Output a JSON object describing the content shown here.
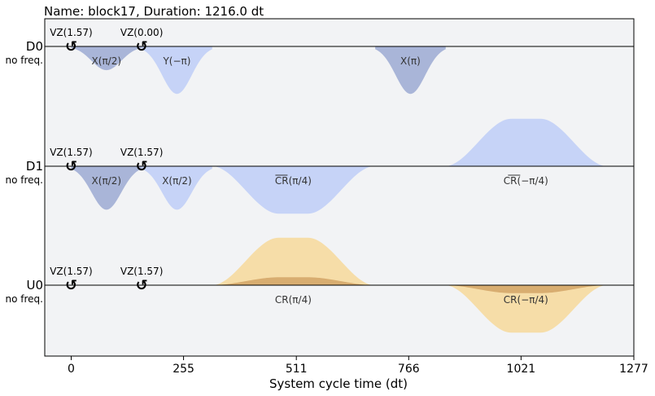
{
  "chart_data": {
    "type": "pulse-schedule",
    "title": "Name: block17, Duration: 1216.0 dt",
    "xlabel": "System cycle time (dt)",
    "xlim": [
      -60,
      1277
    ],
    "xticks": [
      0,
      255,
      511,
      766,
      1021,
      1277
    ],
    "colors": {
      "background": "#f2f3f5",
      "gaussian_dark": "#a9b5d8",
      "gaussian_light": "#c6d3f7",
      "cr_light": "#f6dda8",
      "cr_dark": "#d8ad70"
    },
    "channels": [
      {
        "name": "D0",
        "freq_label": "no freq.",
        "vz": [
          {
            "t": 0,
            "label": "VZ(1.57)"
          },
          {
            "t": 160,
            "label": "VZ(0.00)"
          }
        ],
        "pulses": [
          {
            "t0": 0,
            "t1": 160,
            "amp": -0.3,
            "shape": "gauss",
            "color": "gaussian_dark",
            "label": "X(π/2)"
          },
          {
            "t0": 160,
            "t1": 320,
            "amp": -0.6,
            "shape": "gauss",
            "color": "gaussian_light",
            "label": "Y(−π)"
          },
          {
            "t0": 690,
            "t1": 850,
            "amp": -0.6,
            "shape": "gauss",
            "color": "gaussian_dark",
            "label": "X(π)"
          }
        ]
      },
      {
        "name": "D1",
        "freq_label": "no freq.",
        "vz": [
          {
            "t": 0,
            "label": "VZ(1.57)"
          },
          {
            "t": 160,
            "label": "VZ(1.57)"
          }
        ],
        "pulses": [
          {
            "t0": 0,
            "t1": 160,
            "amp": -0.55,
            "shape": "gauss",
            "color": "gaussian_dark",
            "label": "X(π/2)"
          },
          {
            "t0": 160,
            "t1": 320,
            "amp": -0.55,
            "shape": "gauss",
            "color": "gaussian_light",
            "label": "X(π/2)"
          },
          {
            "t0": 320,
            "t1": 688,
            "amp": -0.6,
            "rise": 150,
            "shape": "flat",
            "color": "gaussian_light",
            "label": "CR(π/4)",
            "overline": true
          },
          {
            "t0": 848,
            "t1": 1216,
            "amp": 0.6,
            "rise": 150,
            "label_below": true,
            "shape": "flat",
            "color": "gaussian_light",
            "label": "CR(−π/4)",
            "overline": true
          }
        ]
      },
      {
        "name": "U0",
        "freq_label": "no freq.",
        "vz": [
          {
            "t": 0,
            "label": "VZ(1.57)"
          },
          {
            "t": 160,
            "label": "VZ(1.57)"
          }
        ],
        "pulses": [
          {
            "t0": 320,
            "t1": 688,
            "amp": 0.6,
            "rise": 150,
            "shape": "flat",
            "color": "cr_light",
            "label": "CR(π/4)",
            "label_below": true
          },
          {
            "t0": 320,
            "t1": 688,
            "amp": 0.1,
            "rise": 150,
            "shape": "flat",
            "color": "cr_dark",
            "label": ""
          },
          {
            "t0": 848,
            "t1": 1216,
            "amp": -0.6,
            "rise": 150,
            "shape": "flat",
            "color": "cr_light",
            "label": "CR(−π/4)"
          },
          {
            "t0": 848,
            "t1": 1216,
            "amp": -0.1,
            "rise": 150,
            "shape": "flat",
            "color": "cr_dark",
            "label": ""
          }
        ]
      }
    ]
  }
}
